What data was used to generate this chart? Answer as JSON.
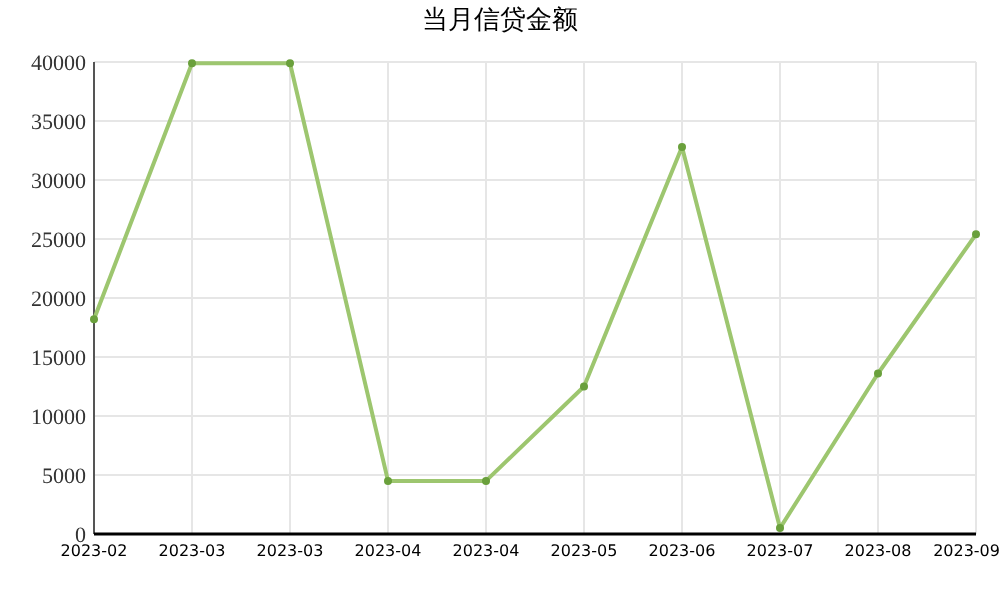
{
  "chart_data": {
    "type": "line",
    "title": "当月信贷金额",
    "categories": [
      "2023-02",
      "2023-03",
      "2023-03",
      "2023-04",
      "2023-04",
      "2023-05",
      "2023-06",
      "2023-07",
      "2023-08",
      "2023-09"
    ],
    "series": [
      {
        "color": "#9dc66f",
        "values": [
          18200,
          39900,
          39900,
          4500,
          4500,
          12500,
          32800,
          500,
          13600,
          25400
        ]
      }
    ],
    "ylim": [
      0,
      40000
    ],
    "yticks": [
      0,
      5000,
      10000,
      15000,
      20000,
      25000,
      30000,
      35000,
      40000
    ],
    "grid": true,
    "marker": "circle",
    "line_style": "solid"
  }
}
